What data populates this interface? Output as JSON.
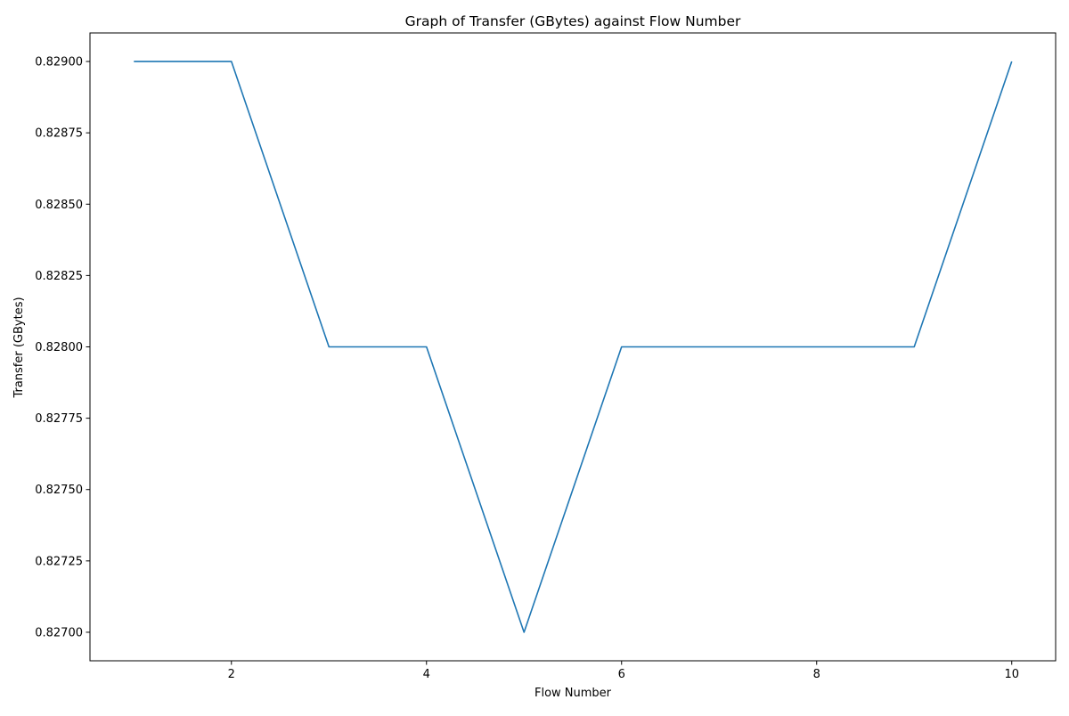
{
  "chart_data": {
    "type": "line",
    "title": "Graph of Transfer (GBytes) against Flow Number",
    "xlabel": "Flow Number",
    "ylabel": "Transfer (GBytes)",
    "x": [
      1,
      2,
      3,
      4,
      5,
      6,
      7,
      8,
      9,
      10
    ],
    "series": [
      {
        "values": [
          0.829,
          0.829,
          0.828,
          0.828,
          0.827,
          0.828,
          0.828,
          0.828,
          0.828,
          0.829
        ]
      }
    ],
    "xlim": [
      0.55,
      10.45
    ],
    "ylim": [
      0.8269,
      0.8291
    ],
    "xticks": [
      2,
      4,
      6,
      8,
      10
    ],
    "xtick_labels": [
      "2",
      "4",
      "6",
      "8",
      "10"
    ],
    "yticks": [
      0.827,
      0.82725,
      0.8275,
      0.82775,
      0.828,
      0.82825,
      0.8285,
      0.82875,
      0.829
    ],
    "ytick_labels": [
      "0.82700",
      "0.82725",
      "0.82750",
      "0.82775",
      "0.82800",
      "0.82825",
      "0.82850",
      "0.82875",
      "0.82900"
    ],
    "grid": false,
    "line_color": "#1f77b4"
  }
}
